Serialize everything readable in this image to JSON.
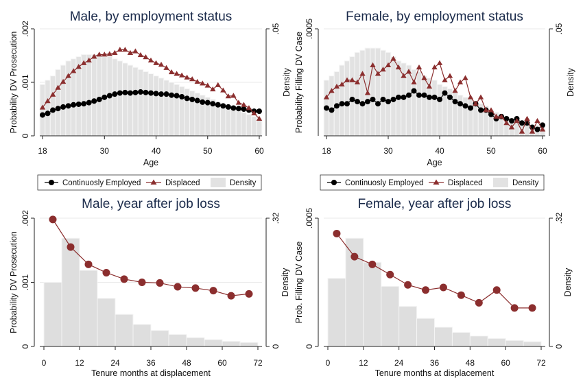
{
  "chart_data": [
    {
      "type": "line",
      "title": "Male, by employment status",
      "xlabel": "Age",
      "ylabel": "Probability DV Prosecution",
      "y2label": "Density",
      "xlim": [
        18,
        60
      ],
      "ylim": [
        0,
        0.002
      ],
      "y2lim": [
        0,
        0.05
      ],
      "xticks": [
        "18",
        "30",
        "40",
        "50",
        "60"
      ],
      "yticks": [
        "0",
        ".001",
        ".002"
      ],
      "y2ticks": [
        ".05"
      ],
      "x": [
        18,
        19,
        20,
        21,
        22,
        23,
        24,
        25,
        26,
        27,
        28,
        29,
        30,
        31,
        32,
        33,
        34,
        35,
        36,
        37,
        38,
        39,
        40,
        41,
        42,
        43,
        44,
        45,
        46,
        47,
        48,
        49,
        50,
        51,
        52,
        53,
        54,
        55,
        56,
        57,
        58,
        59,
        60
      ],
      "series": [
        {
          "name": "Continuosly Employed",
          "marker": "circle",
          "color": "#000000",
          "values": [
            0.00039,
            0.00042,
            0.00048,
            0.00051,
            0.00054,
            0.00056,
            0.00058,
            0.00059,
            0.0006,
            0.00062,
            0.00065,
            0.00068,
            0.00072,
            0.00075,
            0.00078,
            0.0008,
            0.00081,
            0.0008,
            0.00081,
            0.00082,
            0.00081,
            0.0008,
            0.00079,
            0.00078,
            0.00078,
            0.00076,
            0.00075,
            0.00073,
            0.0007,
            0.00068,
            0.00066,
            0.00063,
            0.00062,
            0.0006,
            0.00058,
            0.00056,
            0.00054,
            0.00052,
            0.00051,
            0.0005,
            0.00048,
            0.00046,
            0.00046
          ]
        },
        {
          "name": "Displaced",
          "marker": "triangle",
          "color": "#8b2e2e",
          "values": [
            0.00053,
            0.00065,
            0.00077,
            0.0009,
            0.00101,
            0.00112,
            0.00121,
            0.00129,
            0.00136,
            0.00141,
            0.00148,
            0.00152,
            0.00152,
            0.00153,
            0.00155,
            0.00161,
            0.00161,
            0.00155,
            0.00158,
            0.00151,
            0.00147,
            0.00141,
            0.00136,
            0.00133,
            0.00127,
            0.00119,
            0.00116,
            0.00113,
            0.00109,
            0.00106,
            0.00101,
            0.00098,
            0.00094,
            0.00087,
            0.00095,
            0.00085,
            0.00074,
            0.00075,
            0.00062,
            0.00058,
            0.00052,
            0.00042,
            0.00032
          ]
        },
        {
          "name": "Density",
          "type": "bar",
          "color": "#dcdcdc",
          "values": [
            0.024,
            0.026,
            0.028,
            0.031,
            0.033,
            0.035,
            0.036,
            0.037,
            0.038,
            0.038,
            0.038,
            0.038,
            0.037,
            0.037,
            0.036,
            0.035,
            0.034,
            0.033,
            0.032,
            0.031,
            0.03,
            0.029,
            0.028,
            0.027,
            0.026,
            0.025,
            0.024,
            0.023,
            0.022,
            0.021,
            0.02,
            0.019,
            0.018,
            0.017,
            0.016,
            0.015,
            0.014,
            0.013,
            0.012,
            0.011,
            0.01,
            0.009,
            0.008
          ]
        }
      ],
      "legend": "bottom"
    },
    {
      "type": "line",
      "title": "Female, by employment status",
      "xlabel": "Age",
      "ylabel": "Probability Filling DV Case",
      "y2label": "Density",
      "xlim": [
        18,
        60
      ],
      "ylim": [
        0,
        0.0005
      ],
      "y2lim": [
        0,
        0.05
      ],
      "xticks": [
        "18",
        "30",
        "40",
        "50",
        "60"
      ],
      "yticks": [
        ".0005"
      ],
      "y2ticks": [
        ".05"
      ],
      "x": [
        18,
        19,
        20,
        21,
        22,
        23,
        24,
        25,
        26,
        27,
        28,
        29,
        30,
        31,
        32,
        33,
        34,
        35,
        36,
        37,
        38,
        39,
        40,
        41,
        42,
        43,
        44,
        45,
        46,
        47,
        48,
        49,
        50,
        51,
        52,
        53,
        54,
        55,
        56,
        57,
        58,
        59,
        60
      ],
      "series": [
        {
          "name": "Continuosly Employed",
          "marker": "circle",
          "color": "#000000",
          "values": [
            0.00013,
            0.00012,
            0.00014,
            0.00015,
            0.00015,
            0.00017,
            0.00016,
            0.00015,
            0.00016,
            0.00017,
            0.00015,
            0.00017,
            0.00016,
            0.00017,
            0.00018,
            0.00018,
            0.00019,
            0.00021,
            0.00019,
            0.00019,
            0.00018,
            0.00018,
            0.00017,
            0.0002,
            0.00018,
            0.00016,
            0.00015,
            0.00014,
            0.00013,
            0.00015,
            0.00012,
            0.00012,
            0.0001,
            8e-05,
            9e-05,
            8e-05,
            7e-05,
            8e-05,
            6e-05,
            6e-05,
            4e-05,
            3e-05,
            5e-05
          ]
        },
        {
          "name": "Displaced",
          "marker": "triangle",
          "color": "#8b2e2e",
          "values": [
            0.00018,
            0.00021,
            0.00023,
            0.00024,
            0.00026,
            0.00026,
            0.00025,
            0.00029,
            0.0002,
            0.00033,
            0.00029,
            0.00031,
            0.00033,
            0.00036,
            0.00032,
            0.00028,
            0.0003,
            0.00025,
            0.00032,
            0.00027,
            0.00023,
            0.00032,
            0.00034,
            0.00026,
            0.00028,
            0.00021,
            0.00025,
            0.00027,
            0.00018,
            0.00015,
            0.00018,
            0.00012,
            0.00012,
            9e-05,
            9e-05,
            6e-05,
            4e-05,
            7e-05,
            2e-05,
            8e-05,
            2e-05,
            7e-05,
            3e-05
          ]
        },
        {
          "name": "Density",
          "type": "bar",
          "color": "#dcdcdc",
          "values": [
            0.026,
            0.028,
            0.03,
            0.033,
            0.035,
            0.037,
            0.039,
            0.04,
            0.041,
            0.041,
            0.041,
            0.04,
            0.039,
            0.037,
            0.035,
            0.034,
            0.033,
            0.031,
            0.03,
            0.028,
            0.027,
            0.026,
            0.024,
            0.023,
            0.022,
            0.02,
            0.019,
            0.018,
            0.017,
            0.016,
            0.015,
            0.014,
            0.012,
            0.011,
            0.01,
            0.009,
            0.008,
            0.007,
            0.007,
            0.006,
            0.005,
            0.005,
            0.004
          ]
        }
      ],
      "legend": "bottom"
    },
    {
      "type": "line",
      "title": "Male, year after job loss",
      "xlabel": "Tenure months at displacement",
      "ylabel": "Probability DV Prosecution",
      "y2label": "Density",
      "xlim": [
        0,
        72
      ],
      "ylim": [
        0,
        0.002
      ],
      "y2lim": [
        0,
        0.32
      ],
      "xticks": [
        "0",
        "12",
        "24",
        "36",
        "48",
        "60",
        "72"
      ],
      "yticks": [
        "0",
        ".001",
        ".002"
      ],
      "y2ticks": [
        "0",
        ".32"
      ],
      "x": [
        3,
        9,
        15,
        21,
        27,
        33,
        39,
        45,
        51,
        57,
        63,
        69
      ],
      "series": [
        {
          "name": "Displaced",
          "marker": "circle",
          "color": "#8b2e2e",
          "values": [
            0.00198,
            0.00155,
            0.00128,
            0.00115,
            0.00105,
            0.001,
            0.00099,
            0.00093,
            0.00091,
            0.00087,
            0.00079,
            0.00082
          ]
        },
        {
          "name": "Density",
          "type": "bar",
          "color": "#dcdcdc",
          "bins": [
            0,
            6,
            12,
            18,
            24,
            30,
            36,
            42,
            48,
            54,
            60,
            66,
            72
          ],
          "values": [
            0.16,
            0.27,
            0.19,
            0.12,
            0.08,
            0.055,
            0.04,
            0.03,
            0.022,
            0.017,
            0.013,
            0.01
          ]
        }
      ]
    },
    {
      "type": "line",
      "title": "Female, year after job loss",
      "xlabel": "Tenure months at displacement",
      "ylabel": "Prob. Filling DV Case",
      "y2label": "Density",
      "xlim": [
        0,
        72
      ],
      "ylim": [
        0,
        0.0005
      ],
      "y2lim": [
        0,
        0.32
      ],
      "xticks": [
        "0",
        "12",
        "24",
        "36",
        "48",
        "60",
        "72"
      ],
      "yticks": [
        "0",
        ".0005"
      ],
      "y2ticks": [
        "0",
        ".32"
      ],
      "x": [
        3,
        9,
        15,
        21,
        27,
        33,
        39,
        45,
        51,
        57,
        63,
        69
      ],
      "series": [
        {
          "name": "Displaced",
          "marker": "circle",
          "color": "#8b2e2e",
          "values": [
            0.00044,
            0.00035,
            0.00032,
            0.00028,
            0.00024,
            0.00022,
            0.00023,
            0.0002,
            0.00017,
            0.00022,
            0.00015,
            0.00015
          ]
        },
        {
          "name": "Density",
          "type": "bar",
          "color": "#dcdcdc",
          "bins": [
            0,
            6,
            12,
            18,
            24,
            30,
            36,
            42,
            48,
            54,
            60,
            66,
            72
          ],
          "values": [
            0.17,
            0.27,
            0.21,
            0.15,
            0.1,
            0.07,
            0.048,
            0.035,
            0.026,
            0.02,
            0.015,
            0.012
          ]
        }
      ]
    }
  ],
  "legend_entries": [
    "Continuosly Employed",
    "Displaced",
    "Density"
  ]
}
